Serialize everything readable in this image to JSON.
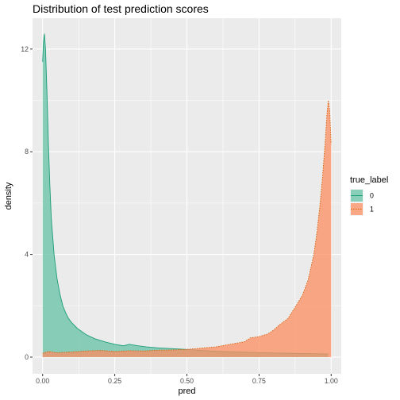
{
  "chart_data": {
    "type": "area",
    "title": "Distribution of test prediction scores",
    "xlabel": "pred",
    "ylabel": "density",
    "xlim": [
      -0.035,
      1.035
    ],
    "ylim": [
      -0.65,
      13.2
    ],
    "x_ticks": [
      0.0,
      0.25,
      0.5,
      0.75,
      1.0
    ],
    "x_tick_labels": [
      "0.00",
      "0.25",
      "0.50",
      "0.75",
      "1.00"
    ],
    "y_ticks": [
      0,
      4,
      8,
      12
    ],
    "y_tick_labels": [
      "0",
      "4",
      "8",
      "12"
    ],
    "grid": true,
    "legend": {
      "title": "true_label",
      "position": "right"
    },
    "series": [
      {
        "name": "0",
        "fill": "#66C2A5",
        "line": "#1B9E77",
        "linestyle": "solid",
        "x": [
          0.0,
          0.003,
          0.006,
          0.01,
          0.015,
          0.02,
          0.025,
          0.03,
          0.04,
          0.05,
          0.06,
          0.07,
          0.08,
          0.09,
          0.1,
          0.12,
          0.15,
          0.18,
          0.2,
          0.22,
          0.25,
          0.28,
          0.3,
          0.33,
          0.36,
          0.4,
          0.45,
          0.5,
          0.55,
          0.6,
          0.65,
          0.7,
          0.75,
          0.8,
          0.85,
          0.9,
          0.95,
          0.99
        ],
        "values": [
          11.5,
          12.3,
          12.6,
          12.0,
          10.3,
          8.3,
          6.7,
          5.4,
          3.95,
          3.05,
          2.45,
          2.0,
          1.72,
          1.5,
          1.35,
          1.12,
          0.88,
          0.72,
          0.65,
          0.58,
          0.5,
          0.44,
          0.5,
          0.44,
          0.4,
          0.36,
          0.33,
          0.3,
          0.26,
          0.23,
          0.21,
          0.19,
          0.17,
          0.16,
          0.15,
          0.14,
          0.13,
          0.12
        ]
      },
      {
        "name": "1",
        "fill": "#FC8D62",
        "line": "#D95F02",
        "linestyle": "dotted",
        "x": [
          0.0,
          0.02,
          0.05,
          0.1,
          0.15,
          0.2,
          0.25,
          0.3,
          0.35,
          0.4,
          0.45,
          0.5,
          0.55,
          0.6,
          0.65,
          0.7,
          0.72,
          0.75,
          0.78,
          0.8,
          0.82,
          0.85,
          0.87,
          0.9,
          0.92,
          0.94,
          0.95,
          0.96,
          0.97,
          0.98,
          0.985,
          0.99,
          0.995,
          1.0
        ],
        "values": [
          0.15,
          0.22,
          0.17,
          0.2,
          0.24,
          0.26,
          0.22,
          0.25,
          0.24,
          0.27,
          0.28,
          0.3,
          0.35,
          0.4,
          0.5,
          0.6,
          0.75,
          0.8,
          0.9,
          1.05,
          1.25,
          1.5,
          1.85,
          2.4,
          3.0,
          4.0,
          4.8,
          5.8,
          7.0,
          8.5,
          9.4,
          10.0,
          9.6,
          8.3
        ]
      }
    ]
  }
}
